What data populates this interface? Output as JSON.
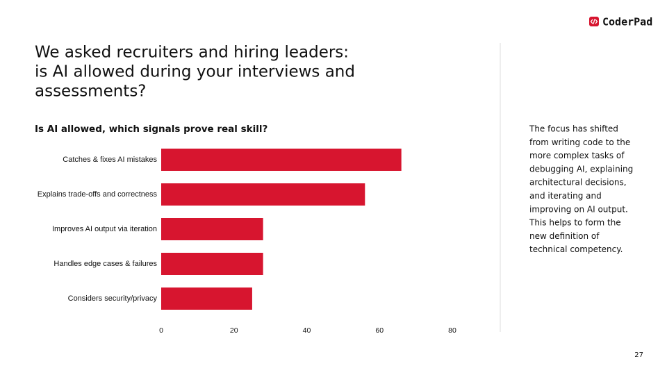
{
  "brand": "CoderPad",
  "headline": [
    "We asked recruiters and hiring leaders:",
    "is AI allowed during your interviews and",
    "assessments?"
  ],
  "note": [
    "The focus has shifted",
    "from writing code to the",
    "more complex tasks of",
    "debugging AI, explaining",
    "architectural decisions,",
    "and iterating and",
    "improving on AI output.",
    "This helps to form the",
    "new definition of",
    "technical competency."
  ],
  "page_number": "27",
  "chart_data": {
    "type": "bar",
    "orientation": "horizontal",
    "title": "Is AI allowed, which signals prove real skill?",
    "categories": [
      "Catches & fixes AI mistakes",
      "Explains trade-offs and correctness",
      "Improves AI output via iteration",
      "Handles edge cases & failures",
      "Considers security/privacy"
    ],
    "values": [
      66,
      56,
      28,
      28,
      25
    ],
    "color": "#d7152f",
    "xlim": [
      0,
      80
    ],
    "xticks": [
      0,
      20,
      40,
      60,
      80
    ],
    "grid": false
  }
}
